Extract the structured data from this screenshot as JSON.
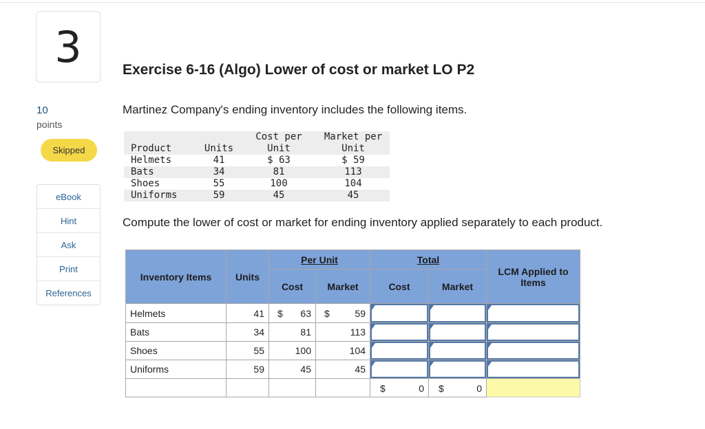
{
  "question_number": "3",
  "points": {
    "value": "10",
    "label": "points"
  },
  "status_badge": "Skipped",
  "side_links": [
    "eBook",
    "Hint",
    "Ask",
    "Print",
    "References"
  ],
  "title": "Exercise 6-16 (Algo) Lower of cost or market LO P2",
  "intro": "Martinez Company's ending inventory includes the following items.",
  "given_table": {
    "headers": {
      "product": "Product",
      "units": "Units",
      "cost_top": "Cost per",
      "cost_bottom": "Unit",
      "market_top": "Market per",
      "market_bottom": "Unit"
    },
    "rows": [
      {
        "product": "Helmets",
        "units": "41",
        "cost": "$ 63",
        "market": "$ 59"
      },
      {
        "product": "Bats",
        "units": "34",
        "cost": "81",
        "market": "113"
      },
      {
        "product": "Shoes",
        "units": "55",
        "cost": "100",
        "market": "104"
      },
      {
        "product": "Uniforms",
        "units": "59",
        "cost": "45",
        "market": "45"
      }
    ]
  },
  "instruction": "Compute the lower of cost or market for ending inventory applied separately to each product.",
  "answer_table": {
    "headers": {
      "inventory_items": "Inventory Items",
      "units": "Units",
      "per_unit": "Per Unit",
      "cost": "Cost",
      "market": "Market",
      "total": "Total",
      "total_cost": "Cost",
      "total_market": "Market",
      "lcm": "LCM Applied to Items"
    },
    "rows": [
      {
        "item": "Helmets",
        "units": "41",
        "cost_cur": "$",
        "cost": "63",
        "market_cur": "$",
        "market": "59"
      },
      {
        "item": "Bats",
        "units": "34",
        "cost_cur": "",
        "cost": "81",
        "market_cur": "",
        "market": "113"
      },
      {
        "item": "Shoes",
        "units": "55",
        "cost_cur": "",
        "cost": "100",
        "market_cur": "",
        "market": "104"
      },
      {
        "item": "Uniforms",
        "units": "59",
        "cost_cur": "",
        "cost": "45",
        "market_cur": "",
        "market": "45"
      }
    ],
    "totals": {
      "cost_cur": "$",
      "cost": "0",
      "market_cur": "$",
      "market": "0"
    }
  },
  "colors": {
    "header_bg": "#7ea3d9",
    "badge": "#f5d847",
    "link": "#2a6496",
    "lcm_total_bg": "#fcf9a9"
  }
}
